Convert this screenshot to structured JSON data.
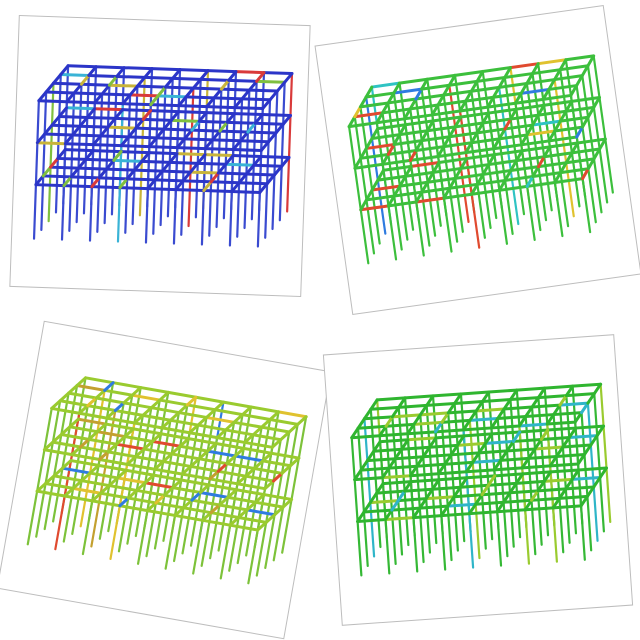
{
  "panels": [
    {
      "id": "panel-1",
      "scheme": "blue",
      "colors": {
        "frame": "#2b35c8",
        "column": "#3a4bd0",
        "accents": [
          "#d93a3a",
          "#7fbf3f",
          "#39b3d6",
          "#c8b43a"
        ]
      }
    },
    {
      "id": "panel-2",
      "scheme": "green",
      "colors": {
        "frame": "#3cbf3c",
        "column": "#3cbf3c",
        "accents": [
          "#2f7be0",
          "#e0c22f",
          "#e04a2f",
          "#2fc3c3"
        ]
      }
    },
    {
      "id": "panel-3",
      "scheme": "yellow-green",
      "colors": {
        "frame": "#9acb2f",
        "column": "#7dc23a",
        "accents": [
          "#e04a2f",
          "#e0c22f",
          "#2f7be0",
          "#c3a02f"
        ]
      }
    },
    {
      "id": "panel-4",
      "scheme": "green",
      "colors": {
        "frame": "#2fb52f",
        "column": "#35b835",
        "accents": [
          "#2fb5c8",
          "#9acb2f"
        ]
      }
    }
  ]
}
